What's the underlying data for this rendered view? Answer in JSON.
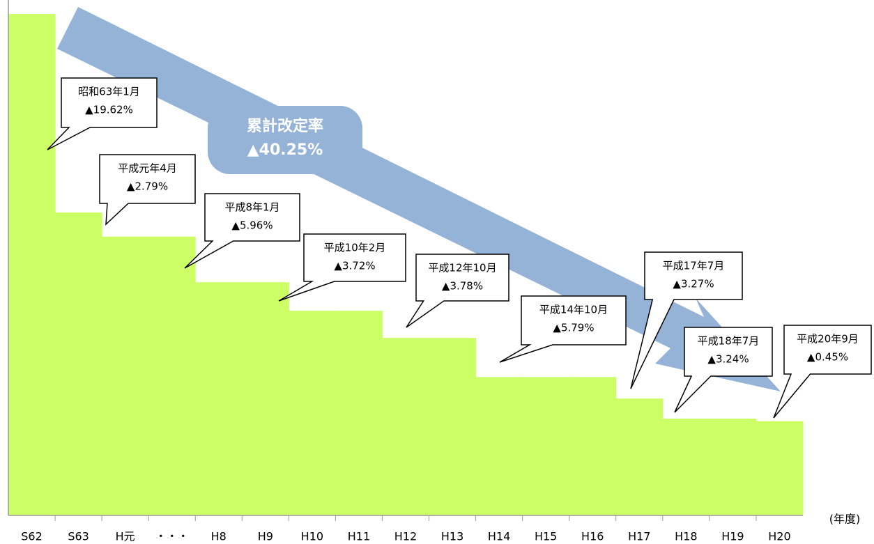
{
  "chart_data": {
    "type": "step-bar",
    "x_label": "(年度)",
    "categories": [
      "S62",
      "S63",
      "H元",
      "・・・",
      "H8",
      "H9",
      "H10",
      "H11",
      "H12",
      "H13",
      "H14",
      "H15",
      "H16",
      "H17",
      "H18",
      "H19",
      "H20"
    ],
    "values": [
      100,
      60.4,
      55.6,
      55.6,
      46.5,
      46.5,
      40.8,
      40.8,
      35.4,
      35.4,
      27.6,
      27.6,
      27.6,
      23.3,
      19.3,
      19.3,
      18.8
    ],
    "color": "#ccff66",
    "ylim": [
      0,
      100
    ],
    "arrow": {
      "title": "累計改定率",
      "rate": "▲40.25%",
      "color": "#95b3d7"
    },
    "annotations": [
      {
        "date": "昭和63年1月",
        "rate": "▲19.62%"
      },
      {
        "date": "平成元年4月",
        "rate": "▲2.79%"
      },
      {
        "date": "平成8年1月",
        "rate": "▲5.96%"
      },
      {
        "date": "平成10年2月",
        "rate": "▲3.72%"
      },
      {
        "date": "平成12年10月",
        "rate": "▲3.78%"
      },
      {
        "date": "平成14年10月",
        "rate": "▲5.79%"
      },
      {
        "date": "平成17年7月",
        "rate": "▲3.27%"
      },
      {
        "date": "平成18年7月",
        "rate": "▲3.24%"
      },
      {
        "date": "平成20年9月",
        "rate": "▲0.45%"
      }
    ]
  }
}
